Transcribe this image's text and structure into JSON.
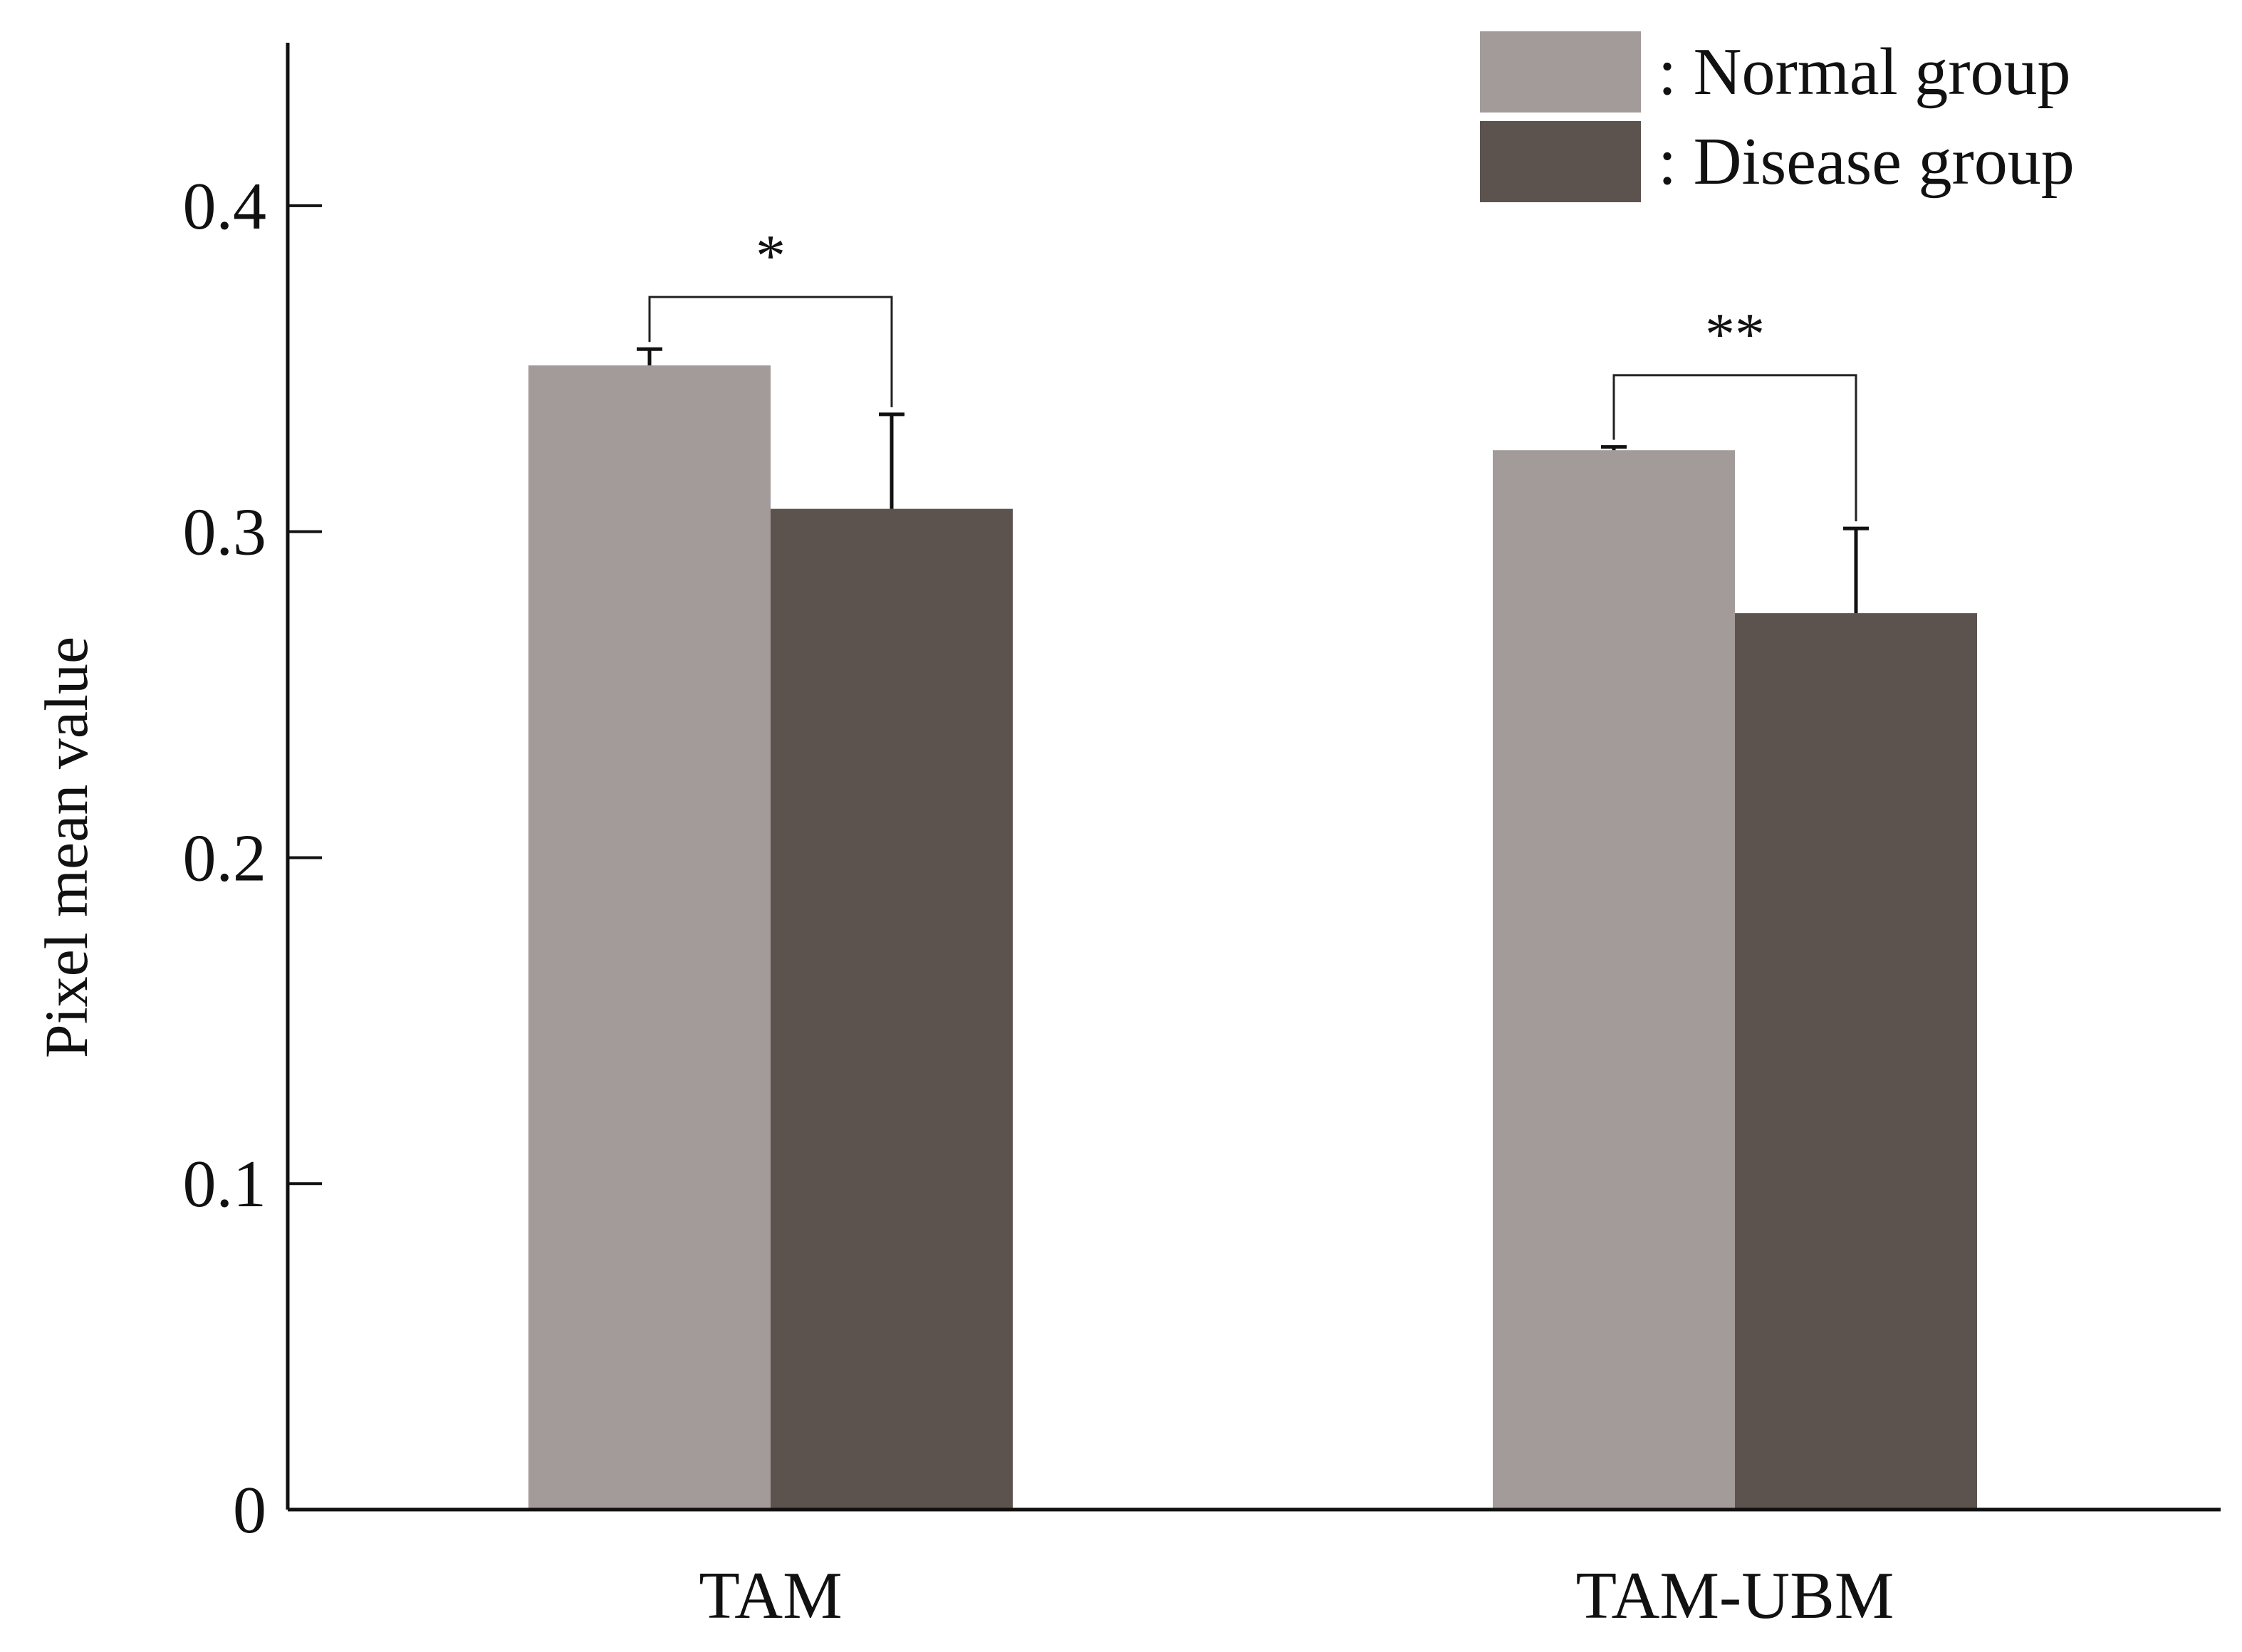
{
  "chart_data": {
    "type": "bar",
    "title": "",
    "xlabel": "",
    "ylabel": "Pixel mean value",
    "categories": [
      "TAM",
      "TAM-UBM"
    ],
    "ylim": [
      0,
      0.45
    ],
    "yticks": [
      0,
      0.1,
      0.2,
      0.3,
      0.4
    ],
    "ytick_labels": [
      "0",
      "0.1",
      "0.2",
      "0.3",
      "0.4"
    ],
    "grid": false,
    "legend_position": "top-right",
    "series": [
      {
        "name": "Normal group",
        "legend_label": ": Normal group",
        "color": "#a29b99",
        "values": [
          0.351,
          0.325
        ],
        "errors": [
          0.005,
          0.001
        ]
      },
      {
        "name": "Disease group",
        "legend_label": ": Disease group",
        "color": "#5c534f",
        "values": [
          0.307,
          0.275
        ],
        "errors": [
          0.029,
          0.026
        ]
      }
    ],
    "significance": [
      {
        "category": "TAM",
        "label": "*",
        "bracket_y": 0.372
      },
      {
        "category": "TAM-UBM",
        "label": "**",
        "bracket_y": 0.348
      }
    ]
  }
}
